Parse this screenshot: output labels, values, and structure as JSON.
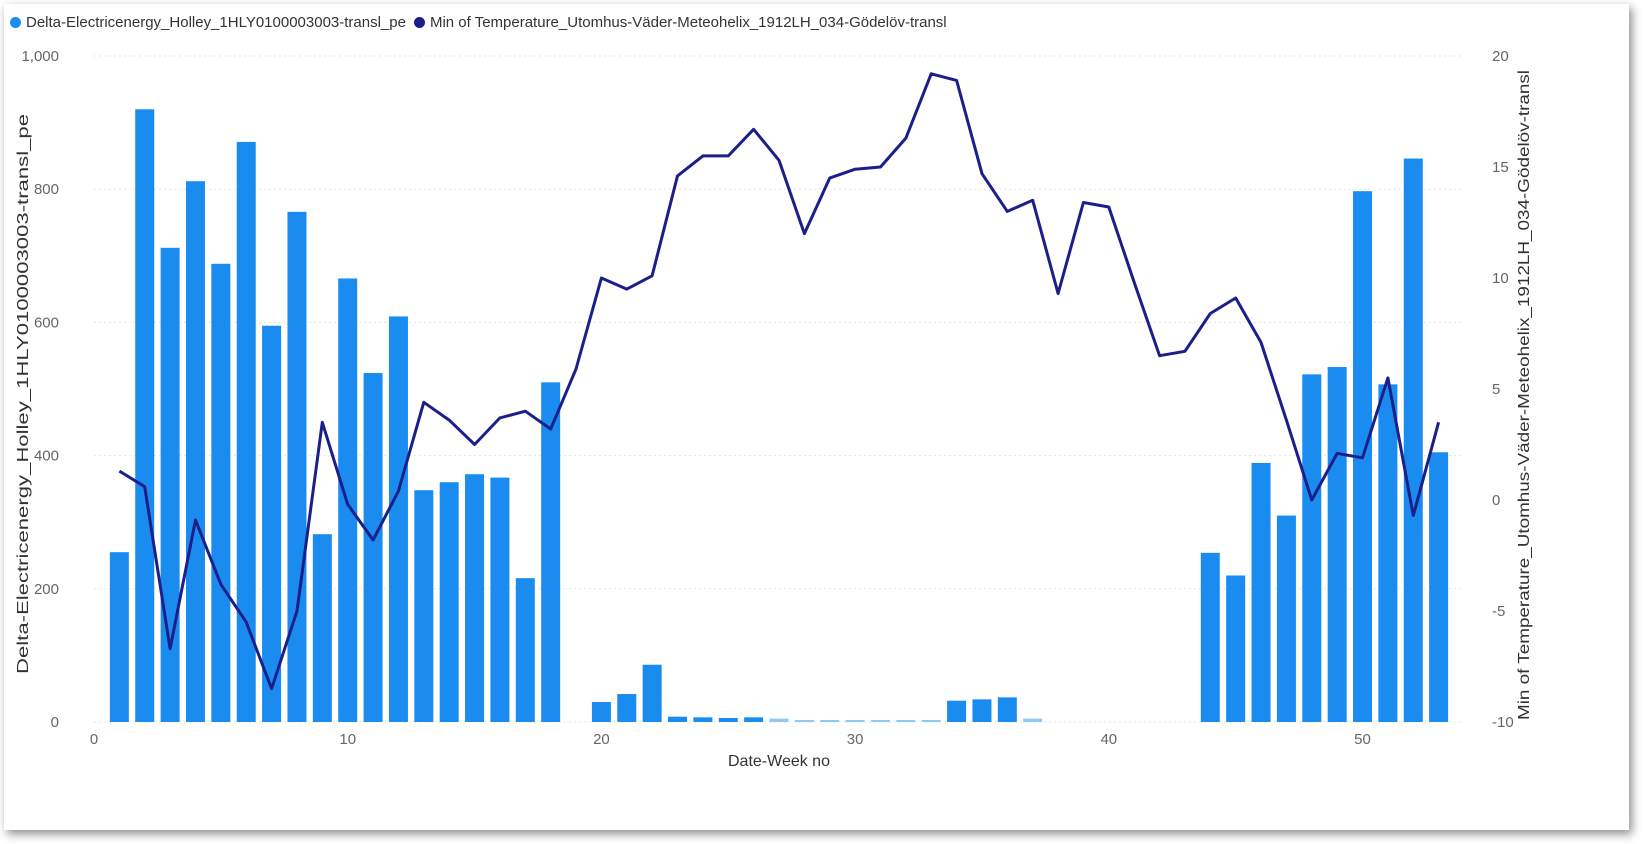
{
  "colors": {
    "bar": "#1a8cf0",
    "bar_light": "#8ec8f6",
    "line": "#1b1f8a",
    "grid": "#e5e5e5"
  },
  "chart_data": {
    "type": "bar",
    "combo": "bar + line, dual y-axis",
    "title": "",
    "xlabel": "Date-Week no",
    "ylabel_left": "Delta-Electricenergy_Holley_1HLY0100003003-transl_pe",
    "ylabel_right": "Min of Temperature_Utomhus-Väder-Meteohelix_1912LH_034-Gödelöv-transl",
    "xlim": [
      0,
      54
    ],
    "ylim_left": [
      0,
      1000
    ],
    "ylim_right": [
      -10,
      20
    ],
    "x_ticks": [
      "0",
      "10",
      "20",
      "30",
      "40",
      "50"
    ],
    "y_left_ticks": [
      "0",
      "200",
      "400",
      "600",
      "800",
      "1,000"
    ],
    "y_right_ticks": [
      "-10",
      "-5",
      "0",
      "5",
      "10",
      "15",
      "20"
    ],
    "grid": true,
    "legend_position": "top-left",
    "legend": [
      {
        "label": "Delta-Electricenergy_Holley_1HLY0100003003-transl_pe",
        "color": "#1a8cf0"
      },
      {
        "label": "Min of Temperature_Utomhus-Väder-Meteohelix_1912LH_034-Gödelöv-transl",
        "color": "#1b1f8a"
      }
    ],
    "series": [
      {
        "name": "Delta-Electricenergy_Holley_1HLY0100003003-transl_pe",
        "type": "bar",
        "axis": "left",
        "x": [
          1,
          2,
          3,
          4,
          5,
          6,
          7,
          8,
          9,
          10,
          11,
          12,
          13,
          14,
          15,
          16,
          17,
          18,
          20,
          21,
          22,
          23,
          24,
          25,
          26,
          27,
          28,
          29,
          30,
          31,
          32,
          33,
          34,
          35,
          36,
          37,
          44,
          45,
          46,
          47,
          48,
          49,
          50,
          51,
          52,
          53
        ],
        "values": [
          255,
          920,
          712,
          812,
          688,
          871,
          595,
          766,
          282,
          666,
          524,
          609,
          348,
          360,
          372,
          367,
          216,
          510,
          30,
          42,
          86,
          8,
          7,
          6,
          7,
          5,
          3,
          3,
          3,
          3,
          3,
          3,
          32,
          34,
          37,
          5,
          254,
          220,
          389,
          310,
          522,
          533,
          797,
          507,
          846,
          405
        ]
      },
      {
        "name": "Min of Temperature_Utomhus-Väder-Meteohelix_1912LH_034-Gödelöv-transl",
        "type": "line",
        "axis": "right",
        "x": [
          1,
          2,
          3,
          4,
          5,
          6,
          7,
          8,
          9,
          10,
          11,
          12,
          13,
          14,
          15,
          16,
          17,
          18,
          19,
          20,
          21,
          22,
          23,
          24,
          25,
          26,
          27,
          28,
          29,
          30,
          31,
          32,
          33,
          34,
          35,
          36,
          37,
          38,
          39,
          40,
          41,
          42,
          43,
          44,
          45,
          46,
          47,
          48,
          49,
          50,
          51,
          52,
          53
        ],
        "values": [
          1.3,
          0.6,
          -6.7,
          -0.9,
          -3.8,
          -5.5,
          -8.5,
          -5,
          3.5,
          -0.2,
          -1.8,
          0.4,
          4.4,
          3.6,
          2.5,
          3.7,
          4,
          3.2,
          5.9,
          10,
          9.5,
          10.1,
          14.6,
          15.5,
          15.5,
          16.7,
          15.3,
          12,
          14.5,
          14.9,
          15,
          16.3,
          19.2,
          18.9,
          14.7,
          13,
          13.5,
          9.3,
          13.4,
          13.2,
          9.8,
          6.5,
          6.7,
          8.4,
          9.1,
          7.1,
          3.6,
          0,
          2.1,
          1.9,
          5.5,
          -0.7,
          3.5
        ]
      }
    ]
  }
}
